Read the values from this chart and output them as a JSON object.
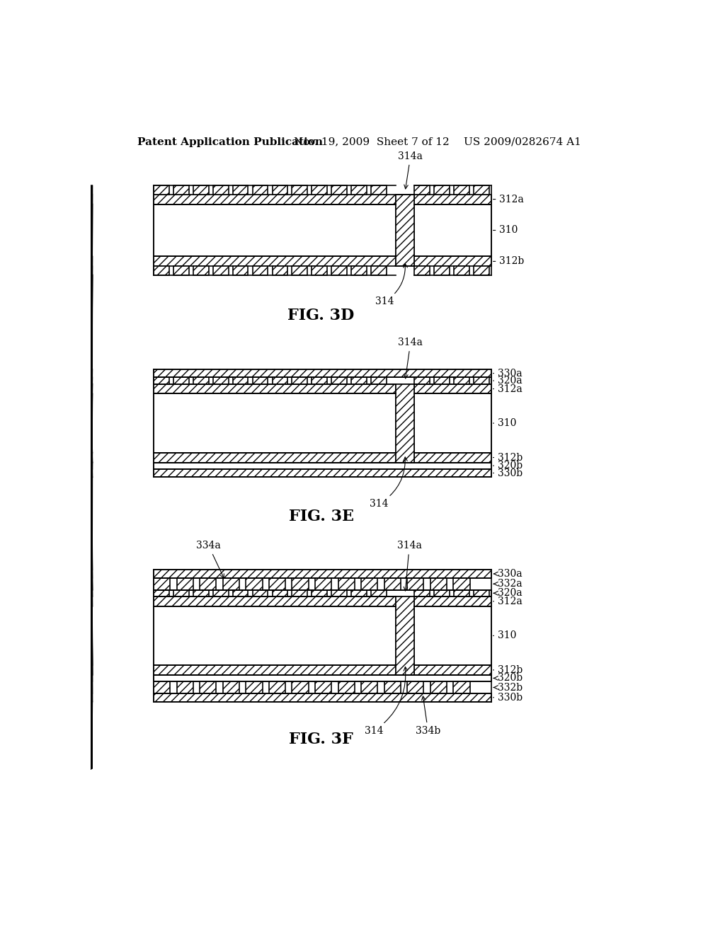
{
  "background_color": "#ffffff",
  "header_left": "Patent Application Publication",
  "header_mid": "Nov. 19, 2009  Sheet 7 of 12",
  "header_right": "US 2009/0282674 A1",
  "header_font_size": 11,
  "fig_label_font_size": 16,
  "annotation_font_size": 10,
  "line_color": "#000000"
}
